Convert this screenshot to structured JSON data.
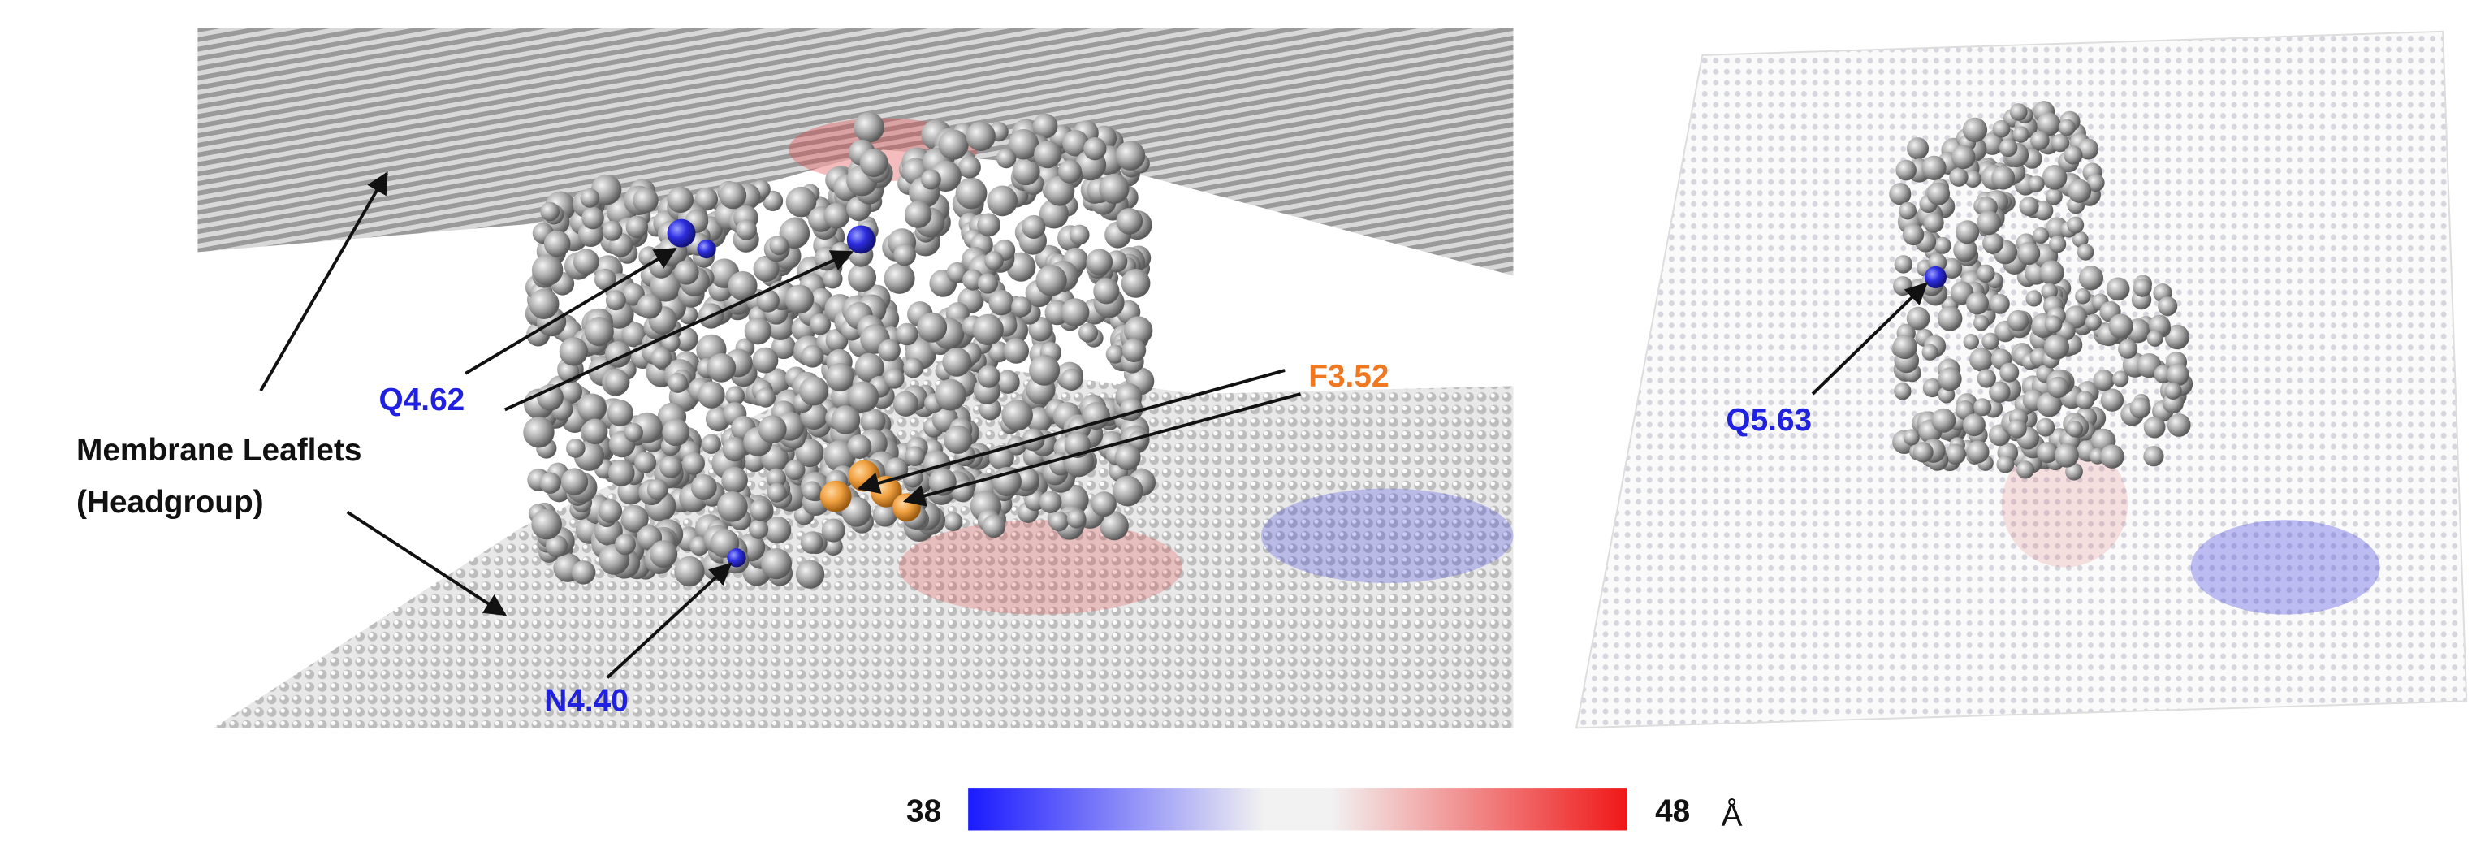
{
  "labels": {
    "membrane": [
      "Membrane Leaflets",
      "(Headgroup)"
    ],
    "q462": "Q4.62",
    "f352": "F3.52",
    "n440": "N4.40",
    "q563": "Q5.63"
  },
  "colorbar": {
    "min": 38,
    "max": 48,
    "unit": "Å"
  }
}
